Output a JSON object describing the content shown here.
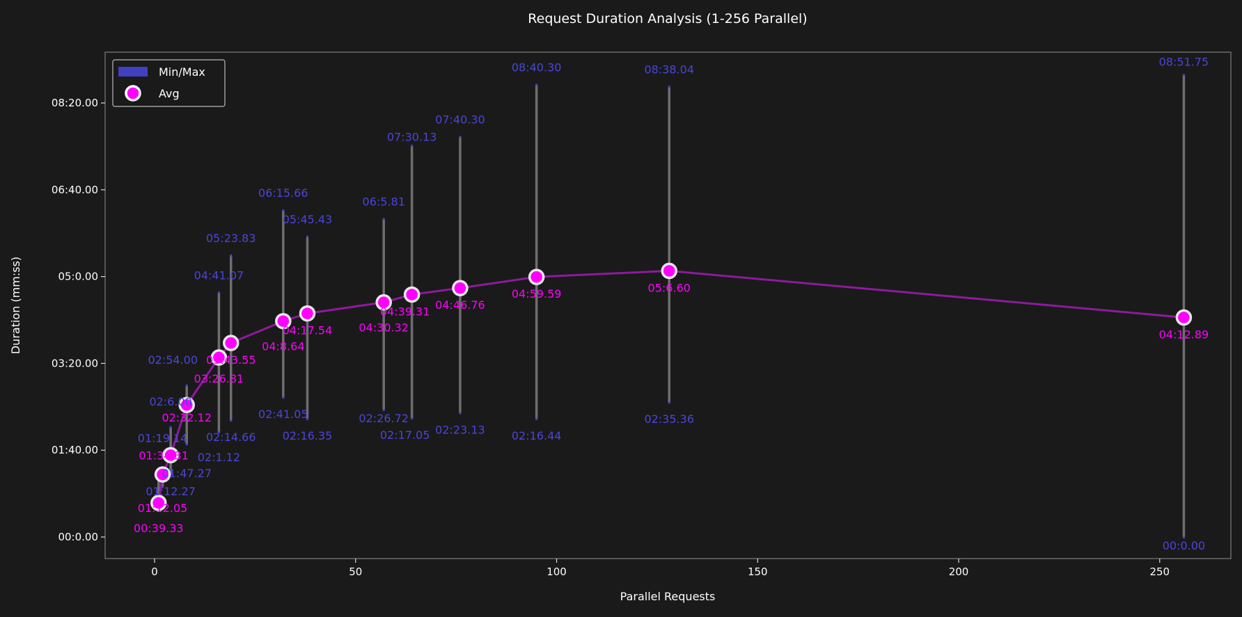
{
  "chart_data": {
    "type": "scatter",
    "title": "Request Duration Analysis (1-256 Parallel)",
    "xlabel": "Parallel Requests",
    "ylabel": "Duration (mm:ss)",
    "xlim": [
      -12.3,
      267.7
    ],
    "ylim": [
      -24.8,
      558.5
    ],
    "x_ticks": [
      0,
      50,
      100,
      150,
      200,
      250
    ],
    "y_ticks": [
      {
        "value": 0,
        "label": "00:0.00"
      },
      {
        "value": 100,
        "label": "01:40.00"
      },
      {
        "value": 200,
        "label": "03:20.00"
      },
      {
        "value": 300,
        "label": "05:0.00"
      },
      {
        "value": 400,
        "label": "06:40.00"
      },
      {
        "value": 500,
        "label": "08:20.00"
      }
    ],
    "legend": {
      "position": "top-left",
      "entries": [
        "Min/Max",
        "Avg"
      ]
    },
    "colors": {
      "bg": "#1a1a1a",
      "range": "#6e6e6e",
      "minmax_label": "#4a46d8",
      "avg": "#ff00ff",
      "avg_line": "#8e1a9e",
      "legend_patch": "#4040c0"
    },
    "points": [
      {
        "x": 1,
        "avg": 39.33,
        "min": 37.0,
        "max": 66.0,
        "avg_label": "00:39.33",
        "min_label": "",
        "max_label": ""
      },
      {
        "x": 2,
        "avg": 72.05,
        "min": 58.0,
        "max": 79.14,
        "avg_label": "01:12.05",
        "min_label": "",
        "max_label": "01:19.14"
      },
      {
        "x": 4,
        "avg": 94.31,
        "min": 72.27,
        "max": 126.0,
        "avg_label": "01:34.31",
        "min_label": "01:12.27",
        "max_label": "02:6.00"
      },
      {
        "x": 8,
        "avg": 152.12,
        "min": 107.27,
        "max": 174.0,
        "avg_label": "02:32.12",
        "min_label": "01:47.27",
        "max_label": "02:54.00"
      },
      {
        "x": 16,
        "avg": 206.81,
        "min": 121.12,
        "max": 281.07,
        "avg_label": "03:26.81",
        "min_label": "02:1.12",
        "max_label": "04:41.07"
      },
      {
        "x": 19,
        "avg": 223.55,
        "min": 134.66,
        "max": 323.83,
        "avg_label": "03:43.55",
        "min_label": "02:14.66",
        "max_label": "05:23.83"
      },
      {
        "x": 32,
        "avg": 248.64,
        "min": 161.05,
        "max": 375.66,
        "avg_label": "04:8.64",
        "min_label": "02:41.05",
        "max_label": "06:15.66"
      },
      {
        "x": 38,
        "avg": 257.54,
        "min": 136.35,
        "max": 345.43,
        "avg_label": "04:17.54",
        "min_label": "02:16.35",
        "max_label": "05:45.43"
      },
      {
        "x": 57,
        "avg": 270.32,
        "min": 146.72,
        "max": 365.81,
        "avg_label": "04:30.32",
        "min_label": "02:26.72",
        "max_label": "06:5.81"
      },
      {
        "x": 64,
        "avg": 279.31,
        "min": 137.05,
        "max": 450.13,
        "avg_label": "04:39.31",
        "min_label": "02:17.05",
        "max_label": "07:30.13"
      },
      {
        "x": 76,
        "avg": 286.76,
        "min": 143.13,
        "max": 460.3,
        "avg_label": "04:46.76",
        "min_label": "02:23.13",
        "max_label": "07:40.30"
      },
      {
        "x": 95,
        "avg": 299.59,
        "min": 136.44,
        "max": 520.3,
        "avg_label": "04:59.59",
        "min_label": "02:16.44",
        "max_label": "08:40.30"
      },
      {
        "x": 128,
        "avg": 306.6,
        "min": 155.36,
        "max": 518.04,
        "avg_label": "05:6.60",
        "min_label": "02:35.36",
        "max_label": "08:38.04"
      },
      {
        "x": 256,
        "avg": 252.89,
        "min": 0.0,
        "max": 531.75,
        "avg_label": "04:12.89",
        "min_label": "00:0.00",
        "max_label": "08:51.75"
      }
    ]
  }
}
